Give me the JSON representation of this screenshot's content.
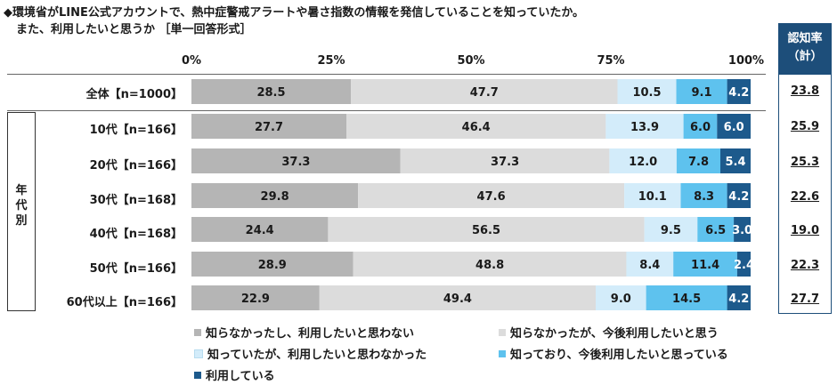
{
  "title": {
    "line1": "◆環境省がLINE公式アカウントで、熱中症警戒アラートや暑さ指数の情報を発信していることを知っていたか。",
    "line2": "また、利用したいと思うか ［単一回答形式］"
  },
  "recognition_header": {
    "line1": "認知率",
    "line2": "（計）"
  },
  "age_group_label": "年\n代\n別",
  "chart_data": {
    "type": "bar",
    "orientation": "horizontal",
    "stacked": "100%",
    "x_ticks": [
      "0%",
      "25%",
      "50%",
      "75%",
      "100%"
    ],
    "xlim": [
      0,
      100
    ],
    "categories": [
      "全体【n=1000】",
      "10代【n=166】",
      "20代【n=166】",
      "30代【n=168】",
      "40代【n=168】",
      "50代【n=166】",
      "60代以上【n=166】"
    ],
    "series": [
      {
        "name": "知らなかったし、利用したいと思わない",
        "color": "#b5b5b5",
        "values": [
          28.5,
          27.7,
          37.3,
          29.8,
          24.4,
          28.9,
          22.9
        ]
      },
      {
        "name": "知らなかったが、今後利用したいと思う",
        "color": "#dcdcdc",
        "values": [
          47.7,
          46.4,
          37.3,
          47.6,
          56.5,
          48.8,
          49.4
        ]
      },
      {
        "name": "知っていたが、利用したいと思わなかった",
        "color": "#d3ecfa",
        "values": [
          10.5,
          13.9,
          12.0,
          10.1,
          9.5,
          8.4,
          9.0
        ]
      },
      {
        "name": "知っており、今後利用したいと思っている",
        "color": "#5ec2ee",
        "values": [
          9.1,
          6.0,
          7.8,
          8.3,
          6.5,
          11.4,
          14.5
        ]
      },
      {
        "name": "利用している",
        "color": "#1d5a8c",
        "values": [
          4.2,
          6.0,
          5.4,
          4.2,
          3.0,
          2.4,
          4.2
        ]
      }
    ],
    "recognition_rate": [
      "23.8",
      "25.9",
      "25.3",
      "22.6",
      "19.0",
      "22.3",
      "27.7"
    ],
    "legend_position": "bottom"
  }
}
